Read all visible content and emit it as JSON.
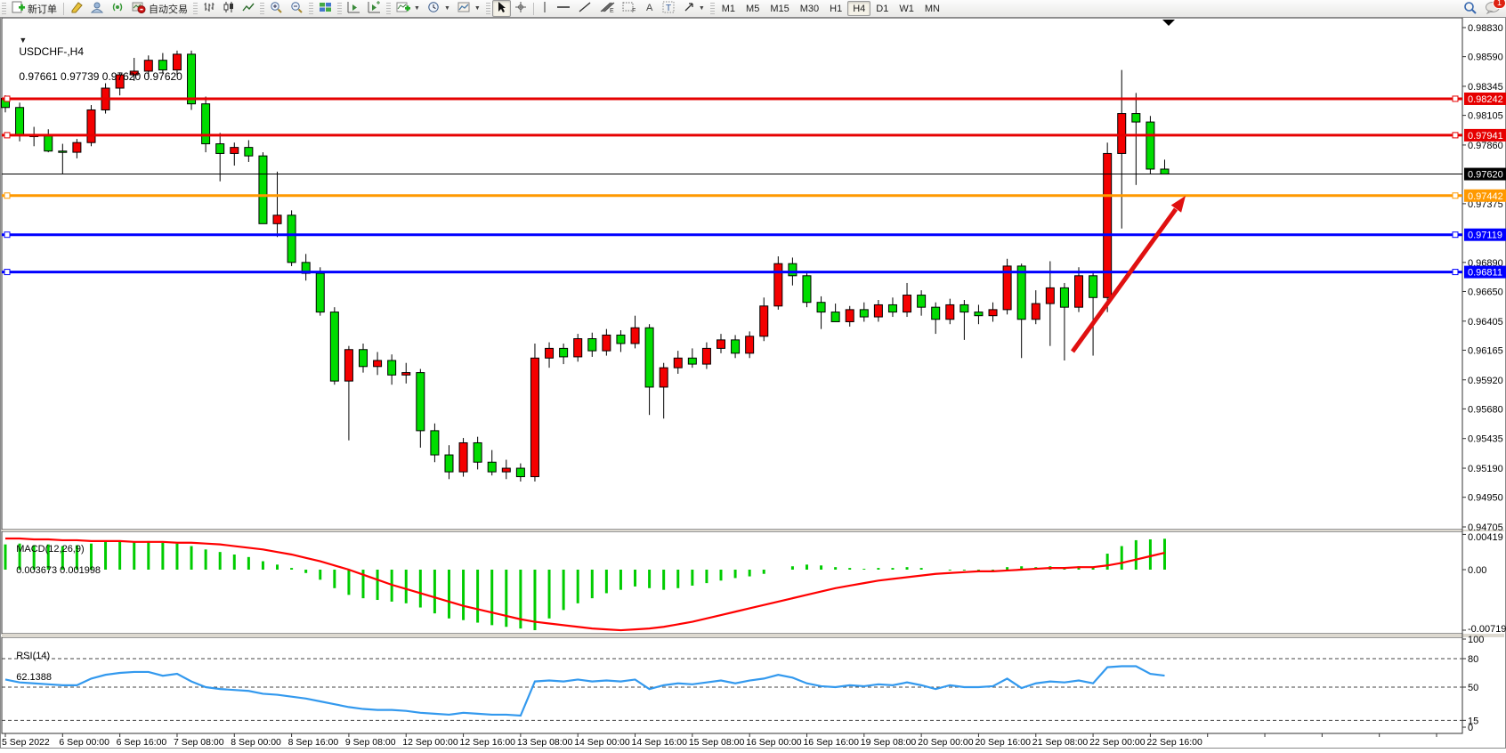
{
  "toolbar": {
    "new_order_label": "新订单",
    "autotrade_label": "自动交易",
    "icons": [
      "new-order-icon",
      "styler-icon",
      "profile-icon",
      "signals-icon",
      "autotrade-icon",
      "bars-chart-icon",
      "candles-chart-icon",
      "line-chart-icon",
      "zoom-in-icon",
      "zoom-out-icon",
      "tile-windows-icon",
      "auto-scroll-icon",
      "chart-shift-icon",
      "indicators-icon",
      "periods-icon",
      "templates-icon",
      "cursor-icon",
      "crosshair-icon",
      "vline-icon",
      "hline-icon",
      "trendline-icon",
      "fibonacci-icon",
      "channel-icon",
      "text-icon",
      "label-icon",
      "shapes-icon",
      "search-icon",
      "chat-icon"
    ],
    "timeframes": [
      "M1",
      "M5",
      "M15",
      "M30",
      "H1",
      "H4",
      "D1",
      "W1",
      "MN"
    ],
    "selected_timeframe": "H4",
    "chat_badge": "1"
  },
  "chart": {
    "title_symbol": "USDCHF-,H4",
    "title_ohlc": "0.97661 0.97739 0.97620 0.97620",
    "price_axis_ticks": [
      "0.98830",
      "0.98590",
      "0.98345",
      "0.98105",
      "0.97860",
      "0.97375",
      "0.96890",
      "0.96650",
      "0.96405",
      "0.96165",
      "0.95920",
      "0.95680",
      "0.95435",
      "0.95190",
      "0.94950",
      "0.94705"
    ],
    "lines": [
      {
        "label": "0.98242",
        "price": 0.98242,
        "color": "#e60000",
        "kind": "resistance"
      },
      {
        "label": "0.97941",
        "price": 0.97941,
        "color": "#e60000",
        "kind": "resistance"
      },
      {
        "label": "0.97620",
        "price": 0.9762,
        "color": "#000000",
        "kind": "bid-price"
      },
      {
        "label": "0.97442",
        "price": 0.97442,
        "color": "#ff9900",
        "kind": "level"
      },
      {
        "label": "0.97119",
        "price": 0.97119,
        "color": "#0000ff",
        "kind": "support"
      },
      {
        "label": "0.96811",
        "price": 0.96811,
        "color": "#0000ff",
        "kind": "support"
      }
    ],
    "arrow_color": "#e01010",
    "colors": {
      "bull": "#f40000",
      "bear": "#00dd00",
      "wick": "#000000",
      "macd_hist": "#00cc00",
      "macd_signal": "#ff0000",
      "rsi_line": "#3399ee"
    }
  },
  "macd": {
    "name": "MACD(12,26,9)",
    "values_text": "0.003673 0.001998",
    "axis": [
      "0.00419",
      "0.00",
      "-0.007196"
    ]
  },
  "rsi": {
    "name": "RSI(14)",
    "value_text": "62.1388",
    "axis": [
      "100",
      "80",
      "50",
      "15",
      "0"
    ],
    "levels": [
      80,
      50,
      15
    ]
  },
  "chart_data": [
    {
      "type": "candlestick",
      "symbol": "USDCHF",
      "timeframe": "H4",
      "note": "red = bullish, green = bearish (Chinese color convention)",
      "time_labels": [
        {
          "i": 0,
          "t": "5 Sep 2022"
        },
        {
          "i": 4,
          "t": "6 Sep 00:00"
        },
        {
          "i": 8,
          "t": "6 Sep 16:00"
        },
        {
          "i": 12,
          "t": "7 Sep 08:00"
        },
        {
          "i": 16,
          "t": "8 Sep 00:00"
        },
        {
          "i": 20,
          "t": "8 Sep 16:00"
        },
        {
          "i": 24,
          "t": "9 Sep 08:00"
        },
        {
          "i": 28,
          "t": "12 Sep 00:00"
        },
        {
          "i": 32,
          "t": "12 Sep 16:00"
        },
        {
          "i": 36,
          "t": "13 Sep 08:00"
        },
        {
          "i": 40,
          "t": "14 Sep 00:00"
        },
        {
          "i": 44,
          "t": "14 Sep 16:00"
        },
        {
          "i": 48,
          "t": "15 Sep 08:00"
        },
        {
          "i": 52,
          "t": "16 Sep 00:00"
        },
        {
          "i": 56,
          "t": "16 Sep 16:00"
        },
        {
          "i": 60,
          "t": "19 Sep 08:00"
        },
        {
          "i": 64,
          "t": "20 Sep 00:00"
        },
        {
          "i": 68,
          "t": "20 Sep 16:00"
        },
        {
          "i": 72,
          "t": "21 Sep 08:00"
        },
        {
          "i": 76,
          "t": "22 Sep 00:00"
        },
        {
          "i": 80,
          "t": "22 Sep 16:00"
        }
      ],
      "ohlc": [
        [
          0.98245,
          0.9827,
          0.9813,
          0.9817
        ],
        [
          0.9817,
          0.9821,
          0.9789,
          0.9794
        ],
        [
          0.9794,
          0.9801,
          0.9785,
          0.97935
        ],
        [
          0.97935,
          0.9799,
          0.978,
          0.9781
        ],
        [
          0.9781,
          0.9787,
          0.9762,
          0.978
        ],
        [
          0.978,
          0.9791,
          0.9775,
          0.9788
        ],
        [
          0.9788,
          0.9819,
          0.9785,
          0.9815
        ],
        [
          0.9815,
          0.9837,
          0.9812,
          0.9833
        ],
        [
          0.9833,
          0.9846,
          0.9827,
          0.9844
        ],
        [
          0.9844,
          0.9858,
          0.9839,
          0.9847
        ],
        [
          0.9847,
          0.986,
          0.9842,
          0.9856
        ],
        [
          0.9856,
          0.9862,
          0.9845,
          0.9848
        ],
        [
          0.9848,
          0.9864,
          0.9844,
          0.9861
        ],
        [
          0.9861,
          0.9864,
          0.9815,
          0.982
        ],
        [
          0.982,
          0.9826,
          0.978,
          0.9787
        ],
        [
          0.9787,
          0.9796,
          0.9756,
          0.9779
        ],
        [
          0.9779,
          0.9788,
          0.9769,
          0.9784
        ],
        [
          0.9784,
          0.979,
          0.9772,
          0.9777
        ],
        [
          0.9777,
          0.978,
          0.9723,
          0.9721
        ],
        [
          0.9721,
          0.9764,
          0.971,
          0.9728
        ],
        [
          0.9728,
          0.9732,
          0.9686,
          0.9689
        ],
        [
          0.9689,
          0.9696,
          0.9674,
          0.968
        ],
        [
          0.968,
          0.9685,
          0.9645,
          0.9648
        ],
        [
          0.9648,
          0.9652,
          0.9588,
          0.9591
        ],
        [
          0.9591,
          0.962,
          0.9542,
          0.9617
        ],
        [
          0.9617,
          0.9622,
          0.9598,
          0.9603
        ],
        [
          0.9603,
          0.9615,
          0.9596,
          0.9608
        ],
        [
          0.9608,
          0.9613,
          0.9588,
          0.9596
        ],
        [
          0.9596,
          0.9606,
          0.9589,
          0.9598
        ],
        [
          0.9598,
          0.9601,
          0.9536,
          0.955
        ],
        [
          0.955,
          0.9556,
          0.9524,
          0.953
        ],
        [
          0.953,
          0.9538,
          0.951,
          0.9516
        ],
        [
          0.9516,
          0.9544,
          0.9512,
          0.954
        ],
        [
          0.954,
          0.9545,
          0.9518,
          0.9524
        ],
        [
          0.9524,
          0.9534,
          0.9513,
          0.9516
        ],
        [
          0.9516,
          0.9526,
          0.951,
          0.9519
        ],
        [
          0.9519,
          0.9523,
          0.9508,
          0.9512
        ],
        [
          0.9512,
          0.9622,
          0.9508,
          0.961
        ],
        [
          0.961,
          0.9623,
          0.9602,
          0.9618
        ],
        [
          0.9618,
          0.9622,
          0.9605,
          0.9611
        ],
        [
          0.9611,
          0.963,
          0.9607,
          0.9626
        ],
        [
          0.9626,
          0.9631,
          0.9611,
          0.9616
        ],
        [
          0.9616,
          0.9634,
          0.9612,
          0.9629
        ],
        [
          0.9629,
          0.9633,
          0.9615,
          0.9622
        ],
        [
          0.9622,
          0.9645,
          0.9618,
          0.9635
        ],
        [
          0.9635,
          0.9638,
          0.9563,
          0.9586
        ],
        [
          0.9586,
          0.9606,
          0.956,
          0.9602
        ],
        [
          0.9602,
          0.9616,
          0.9597,
          0.961
        ],
        [
          0.961,
          0.9618,
          0.9602,
          0.9605
        ],
        [
          0.9605,
          0.9623,
          0.9601,
          0.9618
        ],
        [
          0.9618,
          0.963,
          0.9614,
          0.9625
        ],
        [
          0.9625,
          0.9629,
          0.961,
          0.9614
        ],
        [
          0.9614,
          0.9632,
          0.961,
          0.9628
        ],
        [
          0.9628,
          0.966,
          0.9624,
          0.9653
        ],
        [
          0.9653,
          0.9694,
          0.965,
          0.9688
        ],
        [
          0.9688,
          0.9693,
          0.967,
          0.9678
        ],
        [
          0.9678,
          0.9682,
          0.9652,
          0.9656
        ],
        [
          0.9656,
          0.9661,
          0.9634,
          0.9648
        ],
        [
          0.9648,
          0.9655,
          0.964,
          0.964
        ],
        [
          0.964,
          0.9653,
          0.9636,
          0.965
        ],
        [
          0.965,
          0.9656,
          0.964,
          0.9644
        ],
        [
          0.9644,
          0.9658,
          0.964,
          0.9654
        ],
        [
          0.9654,
          0.966,
          0.9644,
          0.9648
        ],
        [
          0.9648,
          0.9672,
          0.9644,
          0.9662
        ],
        [
          0.9662,
          0.9666,
          0.9645,
          0.9652
        ],
        [
          0.9652,
          0.9656,
          0.963,
          0.9642
        ],
        [
          0.9642,
          0.9659,
          0.9638,
          0.9654
        ],
        [
          0.9654,
          0.9658,
          0.9625,
          0.9648
        ],
        [
          0.9648,
          0.9654,
          0.9638,
          0.9645
        ],
        [
          0.9645,
          0.9656,
          0.964,
          0.965
        ],
        [
          0.965,
          0.9692,
          0.9646,
          0.9686
        ],
        [
          0.9686,
          0.9688,
          0.961,
          0.9642
        ],
        [
          0.9642,
          0.9666,
          0.9638,
          0.9655
        ],
        [
          0.9655,
          0.969,
          0.962,
          0.9668
        ],
        [
          0.9668,
          0.9672,
          0.9608,
          0.9652
        ],
        [
          0.9652,
          0.9685,
          0.9648,
          0.9678
        ],
        [
          0.9678,
          0.9682,
          0.9612,
          0.966
        ],
        [
          0.966,
          0.9788,
          0.9648,
          0.9779
        ],
        [
          0.9779,
          0.9848,
          0.9717,
          0.9812
        ],
        [
          0.9812,
          0.9829,
          0.9753,
          0.9805
        ],
        [
          0.9805,
          0.981,
          0.9762,
          0.97661
        ],
        [
          0.97661,
          0.97739,
          0.9762,
          0.9762
        ]
      ]
    },
    {
      "type": "bar",
      "title": "MACD(12,26,9)",
      "current": [
        0.003673,
        0.001998
      ],
      "ylim": [
        -0.007196,
        0.00419
      ],
      "hist": [
        0.003,
        0.0031,
        0.0029,
        0.003,
        0.0028,
        0.0029,
        0.0031,
        0.0033,
        0.0034,
        0.0033,
        0.0034,
        0.0032,
        0.0031,
        0.0028,
        0.0024,
        0.0021,
        0.0018,
        0.0015,
        0.001,
        0.0006,
        0.0002,
        -0.0004,
        -0.0012,
        -0.0022,
        -0.003,
        -0.0034,
        -0.0036,
        -0.0038,
        -0.004,
        -0.0045,
        -0.0052,
        -0.0058,
        -0.006,
        -0.0063,
        -0.0066,
        -0.0068,
        -0.007,
        -0.0072,
        -0.0058,
        -0.0048,
        -0.004,
        -0.0034,
        -0.0028,
        -0.0024,
        -0.002,
        -0.0022,
        -0.0024,
        -0.0022,
        -0.0019,
        -0.0016,
        -0.0013,
        -0.001,
        -0.0008,
        -0.0005,
        0.0,
        0.0004,
        0.0006,
        0.0005,
        0.0003,
        0.0002,
        0.0001,
        0.0002,
        0.0002,
        0.0003,
        0.0002,
        0.0,
        -0.0001,
        -0.0001,
        -0.0002,
        -0.0001,
        0.0003,
        0.0004,
        0.0003,
        0.0004,
        0.0003,
        0.0004,
        0.0003,
        0.0019,
        0.0028,
        0.0035,
        0.0036,
        0.003673
      ],
      "signal": [
        0.0037,
        0.0037,
        0.0036,
        0.0036,
        0.0035,
        0.0035,
        0.0034,
        0.0034,
        0.0034,
        0.0033,
        0.0033,
        0.0033,
        0.0032,
        0.0032,
        0.0031,
        0.003,
        0.0028,
        0.0026,
        0.0024,
        0.0021,
        0.0018,
        0.0014,
        0.001,
        0.0005,
        0.0,
        -0.0006,
        -0.0012,
        -0.0018,
        -0.0023,
        -0.0028,
        -0.0033,
        -0.0038,
        -0.0043,
        -0.0047,
        -0.0051,
        -0.0055,
        -0.0059,
        -0.0062,
        -0.0064,
        -0.0066,
        -0.0068,
        -0.007,
        -0.0071,
        -0.0072,
        -0.0071,
        -0.007,
        -0.0068,
        -0.0065,
        -0.0062,
        -0.0058,
        -0.0054,
        -0.005,
        -0.0046,
        -0.0042,
        -0.0038,
        -0.0034,
        -0.003,
        -0.0026,
        -0.0022,
        -0.0019,
        -0.0016,
        -0.0013,
        -0.0011,
        -0.0009,
        -0.0007,
        -0.0005,
        -0.0004,
        -0.0003,
        -0.0002,
        -0.0002,
        -0.0001,
        0.0,
        0.0001,
        0.0002,
        0.0002,
        0.0003,
        0.0003,
        0.0005,
        0.0008,
        0.0012,
        0.0016,
        0.002
      ]
    },
    {
      "type": "line",
      "title": "RSI(14)",
      "current": 62.1388,
      "ylim": [
        0,
        100
      ],
      "levels": [
        80,
        50,
        15
      ],
      "values": [
        58,
        55,
        54,
        53,
        52,
        52,
        59,
        63,
        65,
        66,
        66,
        62,
        64,
        56,
        50,
        48,
        47,
        46,
        43,
        42,
        40,
        38,
        35,
        32,
        29,
        27,
        26,
        26,
        25,
        23,
        22,
        21,
        23,
        22,
        21,
        21,
        20,
        56,
        57,
        56,
        58,
        56,
        57,
        56,
        58,
        48,
        52,
        54,
        53,
        55,
        57,
        54,
        57,
        59,
        63,
        60,
        54,
        51,
        50,
        52,
        51,
        53,
        52,
        55,
        52,
        48,
        52,
        50,
        50,
        51,
        59,
        49,
        54,
        56,
        55,
        57,
        54,
        71,
        72,
        72,
        64,
        62.1
      ]
    }
  ]
}
